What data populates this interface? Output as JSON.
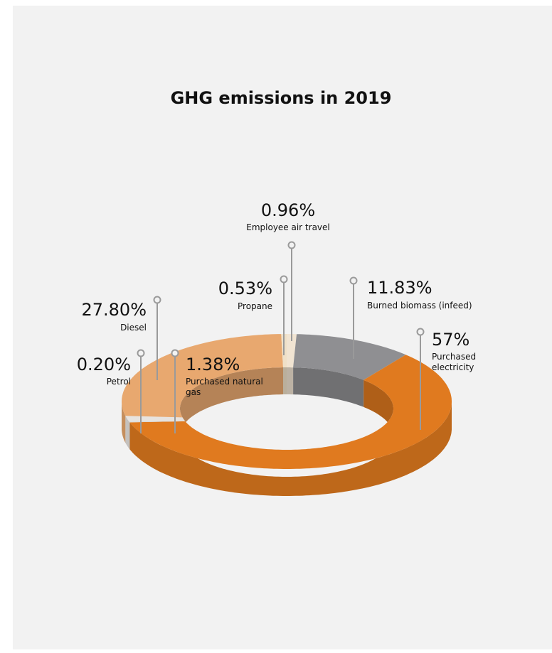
{
  "chart_data": {
    "type": "donut",
    "title": "GHG emissions in 2019",
    "categories": [
      "Employee air travel",
      "Burned biomass (infeed)",
      "Purchased electricity",
      "Petrol",
      "Purchased natural gas",
      "Diesel",
      "Propane"
    ],
    "values": [
      0.96,
      11.83,
      57,
      0.2,
      1.38,
      27.8,
      0.53
    ],
    "value_labels": [
      "0.96%",
      "11.83%",
      "57%",
      "0.20%",
      "1.38%",
      "27.80%",
      "0.53%"
    ],
    "colors": [
      "#f1e4d2",
      "#8f8f92",
      "#e07a1f",
      "#d8d8d8",
      "#e7e3df",
      "#e8a86f",
      "#efe0c8"
    ]
  }
}
